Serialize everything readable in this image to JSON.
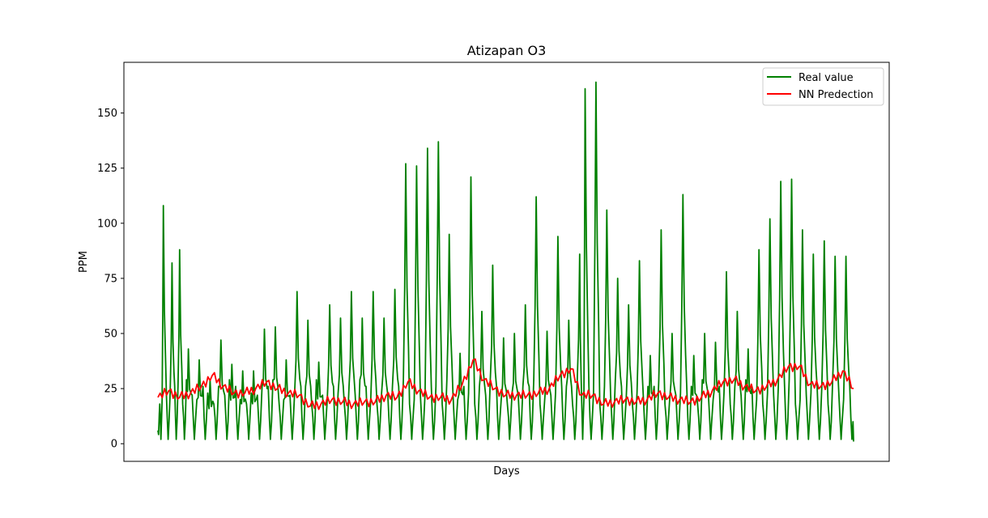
{
  "chart_data": {
    "type": "line",
    "title": "Atizapan O3",
    "xlabel": "Days",
    "ylabel": "PPM",
    "ylim": [
      -8,
      173
    ],
    "yticks": [
      0,
      25,
      50,
      75,
      100,
      125,
      150
    ],
    "xticks_shown": false,
    "grid": false,
    "legend_position": "top-right",
    "x_index_range": [
      0,
      640
    ],
    "series": [
      {
        "name": "Real value",
        "color": "#008000",
        "peaks": [
          [
            0,
            6
          ],
          [
            5,
            108
          ],
          [
            13,
            82
          ],
          [
            20,
            88
          ],
          [
            28,
            43
          ],
          [
            38,
            38
          ],
          [
            48,
            29
          ],
          [
            58,
            47
          ],
          [
            68,
            36
          ],
          [
            78,
            33
          ],
          [
            88,
            33
          ],
          [
            98,
            52
          ],
          [
            108,
            53
          ],
          [
            118,
            38
          ],
          [
            128,
            69
          ],
          [
            138,
            56
          ],
          [
            148,
            37
          ],
          [
            158,
            63
          ],
          [
            168,
            57
          ],
          [
            178,
            69
          ],
          [
            188,
            57
          ],
          [
            198,
            69
          ],
          [
            208,
            57
          ],
          [
            218,
            70
          ],
          [
            228,
            127
          ],
          [
            238,
            126
          ],
          [
            248,
            134
          ],
          [
            258,
            137
          ],
          [
            268,
            95
          ],
          [
            278,
            41
          ],
          [
            288,
            121
          ],
          [
            298,
            60
          ],
          [
            308,
            81
          ],
          [
            318,
            48
          ],
          [
            328,
            50
          ],
          [
            338,
            63
          ],
          [
            348,
            112
          ],
          [
            358,
            51
          ],
          [
            368,
            94
          ],
          [
            378,
            56
          ],
          [
            388,
            86
          ],
          [
            393,
            161
          ],
          [
            403,
            164
          ],
          [
            413,
            106
          ],
          [
            423,
            75
          ],
          [
            433,
            63
          ],
          [
            443,
            83
          ],
          [
            453,
            40
          ],
          [
            463,
            97
          ],
          [
            473,
            50
          ],
          [
            483,
            113
          ],
          [
            493,
            40
          ],
          [
            503,
            50
          ],
          [
            513,
            46
          ],
          [
            523,
            78
          ],
          [
            533,
            60
          ],
          [
            543,
            43
          ],
          [
            553,
            88
          ],
          [
            563,
            102
          ],
          [
            573,
            119
          ],
          [
            583,
            120
          ],
          [
            593,
            97
          ],
          [
            603,
            86
          ],
          [
            613,
            92
          ],
          [
            623,
            85
          ],
          [
            633,
            85
          ],
          [
            643,
            63
          ]
        ],
        "troughs_between_peaks": [
          2,
          2,
          2,
          2,
          2,
          2,
          2,
          2,
          2,
          2,
          2,
          2,
          2,
          2,
          2,
          2,
          2,
          2,
          2,
          2,
          2,
          2,
          2,
          2,
          2,
          2,
          2,
          2,
          2,
          2,
          2,
          2,
          2,
          2,
          2,
          2,
          2,
          2,
          2,
          2,
          2,
          2,
          2,
          2,
          2,
          2,
          2,
          2,
          2,
          2,
          2,
          2,
          2,
          2,
          2,
          2,
          2,
          2,
          2,
          2,
          2,
          2,
          2,
          2,
          2,
          2,
          1
        ]
      },
      {
        "name": "NN Predection",
        "color": "#ff0000",
        "points": [
          [
            0,
            21
          ],
          [
            10,
            24
          ],
          [
            20,
            21
          ],
          [
            30,
            23
          ],
          [
            40,
            26
          ],
          [
            50,
            31
          ],
          [
            60,
            26
          ],
          [
            70,
            23
          ],
          [
            80,
            23
          ],
          [
            90,
            25
          ],
          [
            100,
            28
          ],
          [
            110,
            25
          ],
          [
            120,
            23
          ],
          [
            130,
            22
          ],
          [
            140,
            17
          ],
          [
            150,
            18
          ],
          [
            160,
            20
          ],
          [
            170,
            19
          ],
          [
            180,
            18
          ],
          [
            190,
            19
          ],
          [
            200,
            19
          ],
          [
            210,
            22
          ],
          [
            220,
            21
          ],
          [
            230,
            28
          ],
          [
            240,
            24
          ],
          [
            250,
            21
          ],
          [
            260,
            21
          ],
          [
            270,
            20
          ],
          [
            280,
            27
          ],
          [
            290,
            38
          ],
          [
            300,
            29
          ],
          [
            310,
            25
          ],
          [
            320,
            22
          ],
          [
            330,
            22
          ],
          [
            340,
            22
          ],
          [
            350,
            23
          ],
          [
            360,
            25
          ],
          [
            370,
            31
          ],
          [
            380,
            34
          ],
          [
            390,
            22
          ],
          [
            400,
            22
          ],
          [
            410,
            18
          ],
          [
            420,
            19
          ],
          [
            430,
            20
          ],
          [
            440,
            19
          ],
          [
            450,
            20
          ],
          [
            460,
            23
          ],
          [
            470,
            21
          ],
          [
            480,
            20
          ],
          [
            490,
            19
          ],
          [
            500,
            21
          ],
          [
            510,
            24
          ],
          [
            520,
            28
          ],
          [
            530,
            29
          ],
          [
            540,
            26
          ],
          [
            550,
            24
          ],
          [
            560,
            26
          ],
          [
            570,
            29
          ],
          [
            580,
            35
          ],
          [
            590,
            35
          ],
          [
            600,
            27
          ],
          [
            610,
            26
          ],
          [
            620,
            28
          ],
          [
            630,
            33
          ],
          [
            640,
            25
          ]
        ]
      }
    ]
  }
}
